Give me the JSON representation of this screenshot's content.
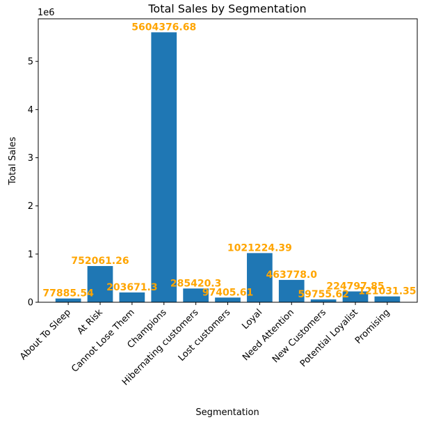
{
  "chart_data": {
    "type": "bar",
    "title": "Total Sales by Segmentation",
    "xlabel": "Segmentation",
    "ylabel": "Total Sales",
    "y_offset_label": "1e6",
    "y_scale": 1000000,
    "ylim": [
      0,
      5884595.51
    ],
    "yticks": [
      0,
      1000000,
      2000000,
      3000000,
      4000000,
      5000000
    ],
    "ytick_labels": [
      "0",
      "1",
      "2",
      "3",
      "4",
      "5"
    ],
    "grid": false,
    "bar_color": "#1f77b4",
    "label_color": "#ffa500",
    "categories": [
      "About To Sleep",
      "At Risk",
      "Cannot Lose Them",
      "Champions",
      "Hibernating customers",
      "Lost customers",
      "Loyal",
      "Need Attention",
      "New Customers",
      "Potential Loyalist",
      "Promising"
    ],
    "values": [
      77885.54,
      752061.26,
      203671.3,
      5604376.68,
      285420.3,
      97405.61,
      1021224.39,
      463778.0,
      59755.62,
      224797.85,
      121031.35
    ],
    "value_labels": [
      "77885.54",
      "752061.26",
      "203671.3",
      "5604376.68",
      "285420.3",
      "97405.61",
      "1021224.39",
      "463778.0",
      "59755.62",
      "224797.85",
      "121031.35"
    ]
  }
}
